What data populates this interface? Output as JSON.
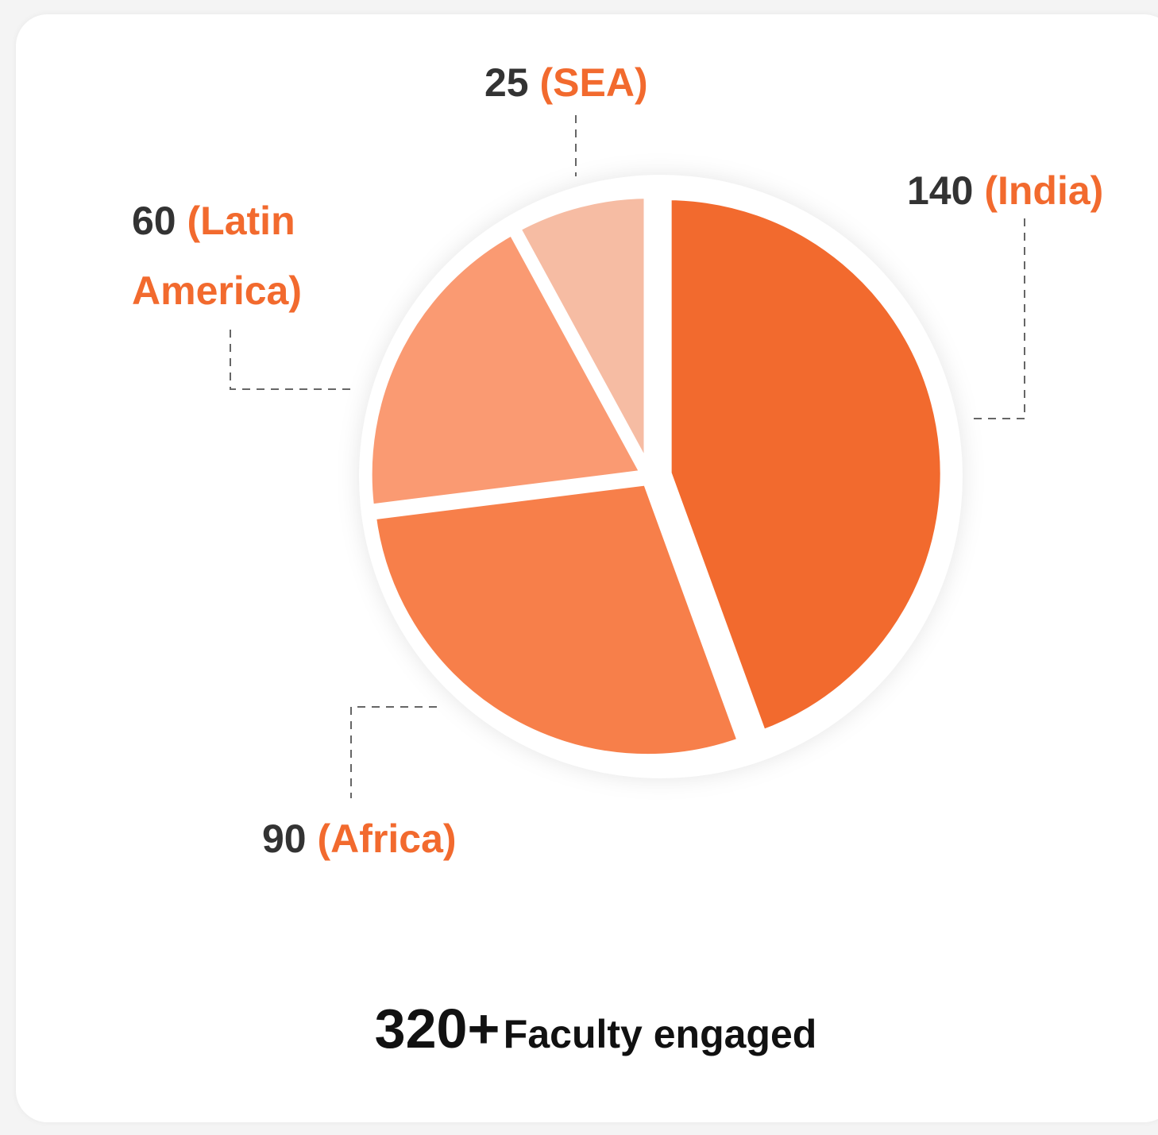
{
  "chart_data": {
    "type": "pie",
    "categories": [
      "(India)",
      "(Africa)",
      "(Latin America)",
      "(SEA)"
    ],
    "values": [
      140,
      90,
      60,
      25
    ],
    "colors": [
      "#f26a2e",
      "#f77f4a",
      "#fa9a72",
      "#f6bca3"
    ],
    "total": "320+",
    "total_label": "Faculty engaged"
  }
}
